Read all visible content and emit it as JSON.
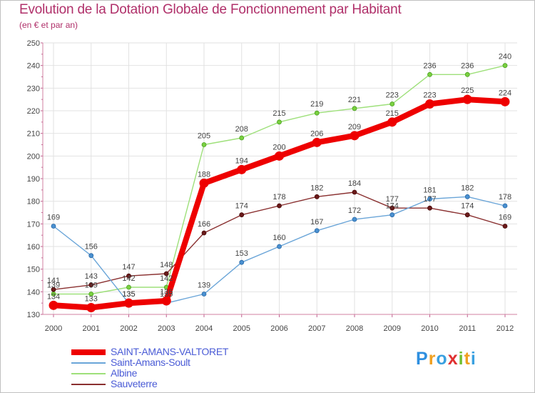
{
  "header": {
    "title": "Evolution de la Dotation Globale de Fonctionnement par Habitant",
    "subtitle": "(en € et par an)"
  },
  "chart_data": {
    "type": "line",
    "x": [
      "2000",
      "2001",
      "2002",
      "2003",
      "2004",
      "2005",
      "2006",
      "2007",
      "2008",
      "2009",
      "2010",
      "2011",
      "2012"
    ],
    "ylim": [
      130,
      250
    ],
    "yticks": [
      130,
      140,
      150,
      160,
      170,
      180,
      190,
      200,
      210,
      220,
      230,
      240,
      250
    ],
    "grid": true,
    "series": [
      {
        "name": "SAINT-AMANS-VALTORET",
        "color": "#ee0000",
        "values": [
          134,
          133,
          135,
          136,
          188,
          194,
          200,
          206,
          209,
          215,
          223,
          225,
          224
        ]
      },
      {
        "name": "Saint-Amans-Soult",
        "color": "#5b9bd5",
        "values": [
          169,
          156,
          135,
          135,
          139,
          153,
          160,
          167,
          172,
          174,
          181,
          182,
          178
        ]
      },
      {
        "name": "Albine",
        "color": "#90dd60",
        "values": [
          139,
          139,
          142,
          142,
          205,
          208,
          215,
          219,
          221,
          223,
          236,
          236,
          240
        ]
      },
      {
        "name": "Sauveterre",
        "color": "#7a2020",
        "values": [
          141,
          143,
          147,
          148,
          166,
          174,
          178,
          182,
          184,
          177,
          177,
          174,
          169
        ]
      }
    ]
  },
  "logo": {
    "letters": [
      "P",
      "r",
      "o",
      "x",
      "i",
      "t",
      "i"
    ],
    "colors": [
      "#2e8fe0",
      "#f0a020",
      "#3aa0e0",
      "#e03030",
      "#70c030",
      "#f0a020",
      "#3aa0e0"
    ]
  }
}
